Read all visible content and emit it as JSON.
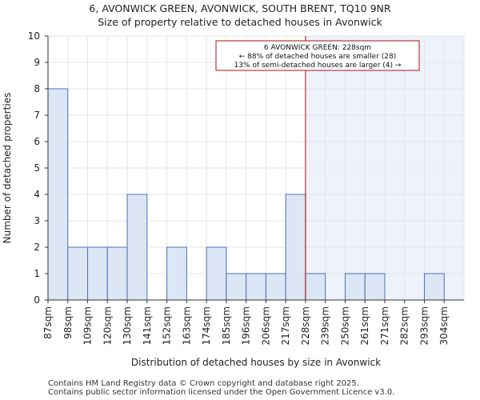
{
  "chart_data": {
    "type": "bar",
    "title": "6, AVONWICK GREEN, AVONWICK, SOUTH BRENT, TQ10 9NR",
    "subtitle": "Size of property relative to detached houses in Avonwick",
    "xlabel": "Distribution of detached houses by size in Avonwick",
    "ylabel": "Number of detached properties",
    "categories": [
      "87sqm",
      "98sqm",
      "109sqm",
      "120sqm",
      "130sqm",
      "141sqm",
      "152sqm",
      "163sqm",
      "174sqm",
      "185sqm",
      "196sqm",
      "206sqm",
      "217sqm",
      "228sqm",
      "239sqm",
      "250sqm",
      "261sqm",
      "271sqm",
      "282sqm",
      "293sqm",
      "304sqm"
    ],
    "values": [
      8,
      2,
      2,
      2,
      4,
      0,
      2,
      0,
      2,
      1,
      1,
      1,
      4,
      1,
      0,
      1,
      1,
      0,
      0,
      1,
      0
    ],
    "ylim": [
      0,
      10
    ],
    "yticks": [
      0,
      1,
      2,
      3,
      4,
      5,
      6,
      7,
      8,
      9,
      10
    ],
    "highlight_from_category": "228sqm",
    "annotation": {
      "lines": [
        "6 AVONWICK GREEN: 228sqm",
        "← 88% of detached houses are smaller (28)",
        "13% of semi-detached houses are larger (4) →"
      ]
    },
    "colors": {
      "bar_fill": "#dce6f4",
      "bar_stroke": "#4a72b8",
      "highlight_region": "#eef2fa",
      "marker_line": "#aa1111",
      "grid": "#e6e6e6",
      "axis": "#333333"
    }
  },
  "footer": {
    "line1": "Contains HM Land Registry data © Crown copyright and database right 2025.",
    "line2": "Contains public sector information licensed under the Open Government Licence v3.0."
  }
}
